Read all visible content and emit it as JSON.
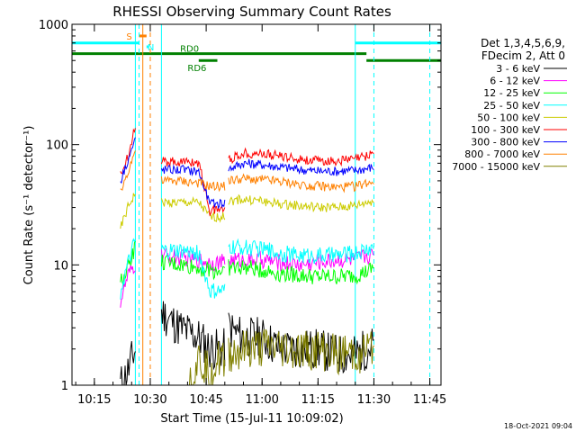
{
  "chart_data": {
    "type": "line",
    "title": "RHESSI Observing Summary Count Rates",
    "xlabel": "Start Time (15-Jul-11 10:09:02)",
    "ylabel": "Count Rate (s⁻¹ detector⁻¹)",
    "y_scale": "log",
    "ylim": [
      1,
      1000
    ],
    "xlim": [
      "10:09",
      "11:48"
    ],
    "x_ticks": [
      "10:15",
      "10:30",
      "10:45",
      "11:00",
      "11:15",
      "11:30",
      "11:45"
    ],
    "y_ticks": [
      "1",
      "10",
      "100",
      "1000"
    ],
    "grid": false,
    "legend_position": "right",
    "legend_header": [
      "Det 1,3,4,5,6,9,",
      "FDecim 2, Att 0"
    ],
    "footer_date": "18-Oct-2021 09:04",
    "segments": [
      {
        "x0": "10:22",
        "x1": "10:26"
      },
      {
        "x0": "10:33",
        "x1": "10:50"
      },
      {
        "x0": "10:51",
        "x1": "11:30"
      }
    ],
    "series": [
      {
        "name": "3 - 6 keV",
        "color": "#000000",
        "pts": [
          [
            "10:22",
            1
          ],
          [
            "10:24",
            1.3
          ],
          [
            "10:26",
            2
          ],
          [
            "10:33",
            4
          ],
          [
            "10:38",
            3
          ],
          [
            "10:43",
            2.5
          ],
          [
            "10:46",
            2
          ],
          [
            "10:50",
            2
          ],
          [
            "10:51",
            3
          ],
          [
            "10:55",
            2.5
          ],
          [
            "11:00",
            2.5
          ],
          [
            "11:05",
            2
          ],
          [
            "11:10",
            2
          ],
          [
            "11:15",
            2
          ],
          [
            "11:20",
            1.8
          ],
          [
            "11:25",
            1.8
          ],
          [
            "11:28",
            2
          ],
          [
            "11:30",
            2.2
          ]
        ]
      },
      {
        "name": "6 - 12 keV",
        "color": "#ff00ff",
        "pts": [
          [
            "10:22",
            5
          ],
          [
            "10:24",
            8
          ],
          [
            "10:26",
            10
          ],
          [
            "10:33",
            12
          ],
          [
            "10:38",
            11.5
          ],
          [
            "10:43",
            11
          ],
          [
            "10:46",
            10.5
          ],
          [
            "10:50",
            10.5
          ],
          [
            "10:51",
            11
          ],
          [
            "10:55",
            11
          ],
          [
            "11:00",
            11
          ],
          [
            "11:05",
            10.5
          ],
          [
            "11:10",
            10
          ],
          [
            "11:15",
            10.5
          ],
          [
            "11:20",
            11
          ],
          [
            "11:25",
            11
          ],
          [
            "11:28",
            12
          ],
          [
            "11:30",
            12
          ]
        ]
      },
      {
        "name": "12 - 25 keV",
        "color": "#00ff00",
        "pts": [
          [
            "10:22",
            7
          ],
          [
            "10:24",
            10
          ],
          [
            "10:26",
            14
          ],
          [
            "10:33",
            10.5
          ],
          [
            "10:38",
            10
          ],
          [
            "10:43",
            9.5
          ],
          [
            "10:46",
            9
          ],
          [
            "10:50",
            9
          ],
          [
            "10:51",
            9.5
          ],
          [
            "10:55",
            9.5
          ],
          [
            "11:00",
            9
          ],
          [
            "11:05",
            8.5
          ],
          [
            "11:10",
            8.2
          ],
          [
            "11:15",
            8
          ],
          [
            "11:20",
            8
          ],
          [
            "11:25",
            8.2
          ],
          [
            "11:28",
            8.8
          ],
          [
            "11:30",
            9.5
          ]
        ]
      },
      {
        "name": "25 - 50 keV",
        "color": "#00ffff",
        "pts": [
          [
            "10:22",
            6
          ],
          [
            "10:24",
            10
          ],
          [
            "10:26",
            16
          ],
          [
            "10:33",
            13
          ],
          [
            "10:38",
            13
          ],
          [
            "10:43",
            12.5
          ],
          [
            "10:46",
            6
          ],
          [
            "10:50",
            6
          ],
          [
            "10:51",
            14
          ],
          [
            "10:55",
            14
          ],
          [
            "11:00",
            13.5
          ],
          [
            "11:05",
            12.5
          ],
          [
            "11:10",
            12
          ],
          [
            "11:15",
            12
          ],
          [
            "11:20",
            12
          ],
          [
            "11:25",
            12.5
          ],
          [
            "11:28",
            13.5
          ],
          [
            "11:30",
            14
          ]
        ]
      },
      {
        "name": "50 - 100 keV",
        "color": "#cccc00",
        "pts": [
          [
            "10:22",
            20
          ],
          [
            "10:24",
            30
          ],
          [
            "10:26",
            40
          ],
          [
            "10:33",
            33
          ],
          [
            "10:38",
            33
          ],
          [
            "10:43",
            33
          ],
          [
            "10:46",
            25
          ],
          [
            "10:50",
            25
          ],
          [
            "10:51",
            34
          ],
          [
            "10:55",
            35
          ],
          [
            "11:00",
            34
          ],
          [
            "11:05",
            32
          ],
          [
            "11:10",
            31
          ],
          [
            "11:15",
            30
          ],
          [
            "11:20",
            30
          ],
          [
            "11:25",
            31
          ],
          [
            "11:28",
            33
          ],
          [
            "11:30",
            34
          ]
        ]
      },
      {
        "name": "100 - 300 keV",
        "color": "#ff0000",
        "pts": [
          [
            "10:22",
            55
          ],
          [
            "10:24",
            80
          ],
          [
            "10:26",
            150
          ],
          [
            "10:33",
            72
          ],
          [
            "10:38",
            72
          ],
          [
            "10:43",
            71
          ],
          [
            "10:46",
            28
          ],
          [
            "10:50",
            30
          ],
          [
            "10:51",
            75
          ],
          [
            "10:55",
            85
          ],
          [
            "11:00",
            84
          ],
          [
            "11:05",
            80
          ],
          [
            "11:10",
            76
          ],
          [
            "11:15",
            73
          ],
          [
            "11:20",
            73
          ],
          [
            "11:25",
            76
          ],
          [
            "11:28",
            80
          ],
          [
            "11:30",
            88
          ]
        ]
      },
      {
        "name": "300 - 800 keV",
        "color": "#0000ff",
        "pts": [
          [
            "10:22",
            50
          ],
          [
            "10:24",
            75
          ],
          [
            "10:26",
            110
          ],
          [
            "10:33",
            62
          ],
          [
            "10:38",
            62
          ],
          [
            "10:43",
            60
          ],
          [
            "10:46",
            32
          ],
          [
            "10:50",
            33
          ],
          [
            "10:51",
            63
          ],
          [
            "10:55",
            70
          ],
          [
            "11:00",
            68
          ],
          [
            "11:05",
            65
          ],
          [
            "11:10",
            62
          ],
          [
            "11:15",
            60
          ],
          [
            "11:20",
            60
          ],
          [
            "11:25",
            61
          ],
          [
            "11:28",
            63
          ],
          [
            "11:30",
            65
          ]
        ]
      },
      {
        "name": "800 - 7000 keV",
        "color": "#ff8000",
        "pts": [
          [
            "10:22",
            40
          ],
          [
            "10:24",
            60
          ],
          [
            "10:26",
            90
          ],
          [
            "10:33",
            50
          ],
          [
            "10:38",
            50
          ],
          [
            "10:43",
            48
          ],
          [
            "10:46",
            45
          ],
          [
            "10:50",
            45
          ],
          [
            "10:51",
            50
          ],
          [
            "10:55",
            52
          ],
          [
            "11:00",
            51
          ],
          [
            "11:05",
            49
          ],
          [
            "11:10",
            47
          ],
          [
            "11:15",
            45
          ],
          [
            "11:20",
            44
          ],
          [
            "11:25",
            45
          ],
          [
            "11:28",
            48
          ],
          [
            "11:30",
            50
          ]
        ]
      },
      {
        "name": "7000 - 15000 keV",
        "color": "#808000",
        "pts": [
          [
            "10:40",
            1
          ],
          [
            "10:43",
            1.6
          ],
          [
            "10:46",
            1.3
          ],
          [
            "10:50",
            1.8
          ],
          [
            "10:55",
            1.9
          ],
          [
            "11:00",
            2
          ],
          [
            "11:05",
            2
          ],
          [
            "11:10",
            1.9
          ],
          [
            "11:15",
            1.9
          ],
          [
            "11:20",
            1.8
          ],
          [
            "11:25",
            1.8
          ],
          [
            "11:30",
            2
          ]
        ]
      }
    ],
    "vlines": [
      {
        "x": "10:26",
        "color": "#00ffff",
        "dash": false
      },
      {
        "x": "10:27",
        "color": "#00ffff",
        "dash": true
      },
      {
        "x": "10:28",
        "color": "#ff8000",
        "dash": false
      },
      {
        "x": "10:30",
        "color": "#ff8000",
        "dash": true
      },
      {
        "x": "10:33",
        "color": "#00ffff",
        "dash": false
      },
      {
        "x": "11:25",
        "color": "#00ffff",
        "dash": false
      },
      {
        "x": "11:30",
        "color": "#00ffff",
        "dash": true
      },
      {
        "x": "11:45",
        "color": "#00ffff",
        "dash": true
      }
    ],
    "flag_bars": [
      {
        "label": "",
        "color": "#00ffff",
        "x0": "10:09",
        "x1": "10:27",
        "y": 700
      },
      {
        "label": "",
        "color": "#00ffff",
        "x0": "11:25",
        "x1": "11:48",
        "y": 700
      },
      {
        "label": "S",
        "color": "#ff8000",
        "x0": "10:27",
        "x1": "10:29",
        "y": 800
      },
      {
        "label": "N",
        "color": "#00ffff",
        "x0": "10:29",
        "x1": "10:29",
        "y": 650
      },
      {
        "label": "RD0",
        "color": "#008000",
        "x0": "10:09",
        "x1": "11:28",
        "y": 570
      },
      {
        "label": "RD6",
        "color": "#008000",
        "x0": "10:43",
        "x1": "10:48",
        "y": 500
      },
      {
        "label": "",
        "color": "#008000",
        "x0": "11:28",
        "x1": "11:48",
        "y": 500
      }
    ]
  }
}
